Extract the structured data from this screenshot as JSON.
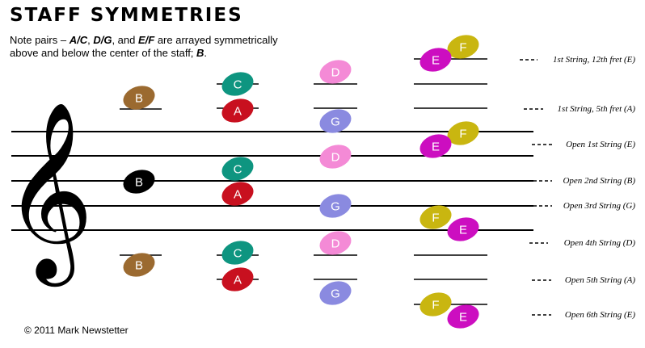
{
  "header": {
    "title": "STAFF SYMMETRIES",
    "desc_pre": "Note pairs – ",
    "pair_ac": "A/C",
    "sep1": ", ",
    "pair_dg": "D/G",
    "sep2": ", and ",
    "pair_ef": "E/F",
    "desc_mid": " are arrayed symmetrically above and below the center of the staff; ",
    "center_note": "B",
    "desc_end": "."
  },
  "clef": {
    "icon": "treble-clef-icon",
    "glyph": "𝄞"
  },
  "colors": {
    "A": "#c8101f",
    "B": "#9b6a30",
    "C": "#0e9580",
    "D": "#f48ad6",
    "E": "#cc0ec0",
    "F": "#c9b610",
    "G": "#8a8ae0",
    "B_center": "#000000"
  },
  "notes": [
    {
      "letter": "B",
      "color": "#9b6a30"
    },
    {
      "letter": "B",
      "color": "#000000"
    },
    {
      "letter": "B",
      "color": "#9b6a30"
    },
    {
      "letter": "C",
      "color": "#0e9580"
    },
    {
      "letter": "A",
      "color": "#c8101f"
    },
    {
      "letter": "C",
      "color": "#0e9580"
    },
    {
      "letter": "A",
      "color": "#c8101f"
    },
    {
      "letter": "C",
      "color": "#0e9580"
    },
    {
      "letter": "A",
      "color": "#c8101f"
    },
    {
      "letter": "D",
      "color": "#f48ad6"
    },
    {
      "letter": "G",
      "color": "#8a8ae0"
    },
    {
      "letter": "D",
      "color": "#f48ad6"
    },
    {
      "letter": "G",
      "color": "#8a8ae0"
    },
    {
      "letter": "D",
      "color": "#f48ad6"
    },
    {
      "letter": "G",
      "color": "#8a8ae0"
    },
    {
      "letter": "F",
      "color": "#c9b610"
    },
    {
      "letter": "E",
      "color": "#cc0ec0"
    },
    {
      "letter": "F",
      "color": "#c9b610"
    },
    {
      "letter": "E",
      "color": "#cc0ec0"
    },
    {
      "letter": "F",
      "color": "#c9b610"
    },
    {
      "letter": "E",
      "color": "#cc0ec0"
    },
    {
      "letter": "F",
      "color": "#c9b610"
    },
    {
      "letter": "E",
      "color": "#cc0ec0"
    }
  ],
  "string_labels": [
    "1st String, 12th fret (E)",
    "1st String, 5th fret (A)",
    "Open 1st String (E)",
    "Open 2nd String (B)",
    "Open 3rd String (G)",
    "Open 4th String (D)",
    "Open 5th String (A)",
    "Open 6th String (E)"
  ],
  "footer": {
    "copyright": "© 2011 Mark Newstetter"
  }
}
